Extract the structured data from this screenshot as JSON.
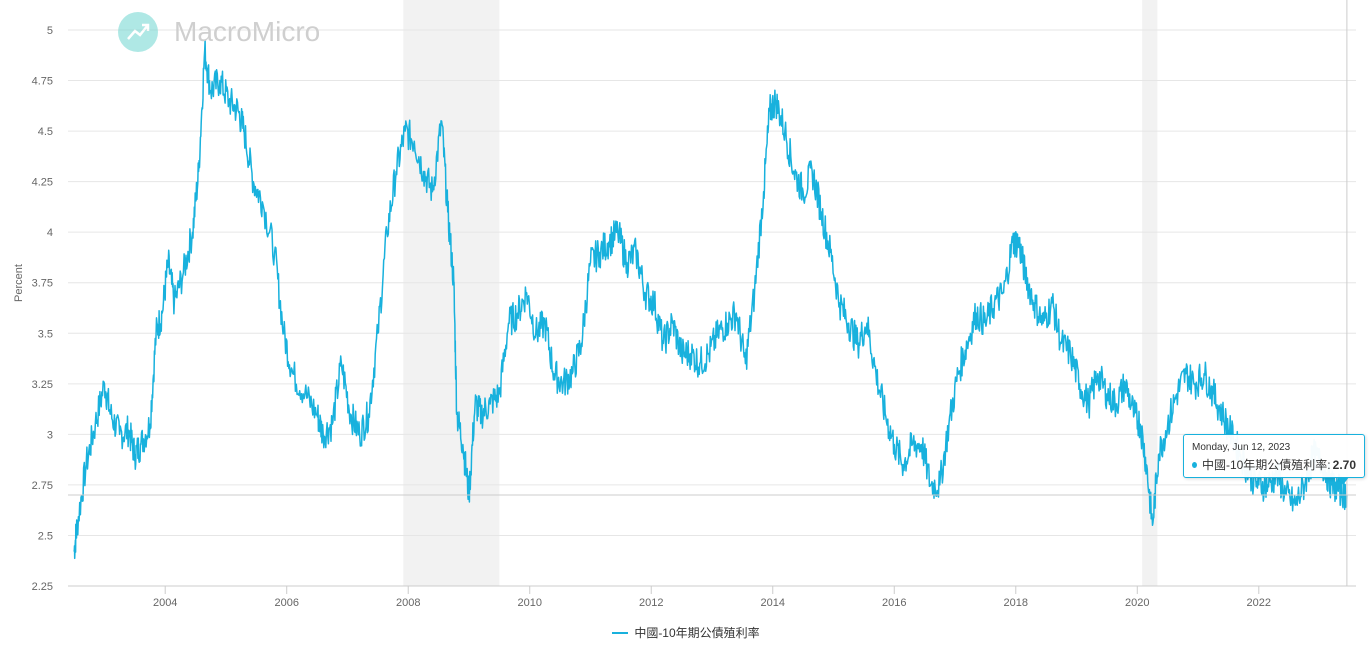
{
  "logo": {
    "text": "MacroMicro",
    "icon": "trend-chart-icon"
  },
  "chart_data": {
    "type": "line",
    "title": "",
    "ylabel": "Percent",
    "xlabel": "",
    "ylim": [
      2.25,
      5
    ],
    "yticks": [
      "2.25",
      "2.5",
      "2.75",
      "3",
      "3.25",
      "3.5",
      "3.75",
      "4",
      "4.25",
      "4.5",
      "4.75",
      "5"
    ],
    "xticks": [
      "2004",
      "2006",
      "2008",
      "2010",
      "2012",
      "2014",
      "2016",
      "2018",
      "2020",
      "2022"
    ],
    "xlim": [
      2002.4,
      2023.6
    ],
    "recession_bands": [
      [
        2007.92,
        2009.5
      ],
      [
        2020.08,
        2020.33
      ]
    ],
    "color": "#18b1dd",
    "series": [
      {
        "name": "中國-10年期公債殖利率",
        "x": [
          2002.5,
          2002.55,
          2002.7,
          2002.85,
          2003.0,
          2003.1,
          2003.25,
          2003.4,
          2003.5,
          2003.6,
          2003.75,
          2003.85,
          2003.95,
          2004.05,
          2004.15,
          2004.3,
          2004.45,
          2004.55,
          2004.65,
          2004.75,
          2004.9,
          2005.05,
          2005.2,
          2005.3,
          2005.45,
          2005.6,
          2005.8,
          2005.95,
          2006.1,
          2006.3,
          2006.5,
          2006.6,
          2006.75,
          2006.9,
          2007.05,
          2007.2,
          2007.35,
          2007.5,
          2007.65,
          2007.8,
          2007.95,
          2008.1,
          2008.25,
          2008.4,
          2008.55,
          2008.65,
          2008.75,
          2008.8,
          2008.9,
          2009.0,
          2009.1,
          2009.2,
          2009.35,
          2009.5,
          2009.65,
          2009.8,
          2009.95,
          2010.1,
          2010.25,
          2010.4,
          2010.55,
          2010.7,
          2010.85,
          2011.0,
          2011.15,
          2011.3,
          2011.45,
          2011.6,
          2011.75,
          2011.9,
          2012.05,
          2012.2,
          2012.35,
          2012.5,
          2012.65,
          2012.8,
          2012.95,
          2013.1,
          2013.25,
          2013.4,
          2013.55,
          2013.7,
          2013.85,
          2013.95,
          2014.05,
          2014.2,
          2014.35,
          2014.5,
          2014.65,
          2014.8,
          2014.95,
          2015.1,
          2015.25,
          2015.4,
          2015.55,
          2015.7,
          2015.85,
          2016.0,
          2016.15,
          2016.3,
          2016.45,
          2016.6,
          2016.75,
          2016.9,
          2017.05,
          2017.2,
          2017.35,
          2017.5,
          2017.65,
          2017.8,
          2017.95,
          2018.05,
          2018.15,
          2018.3,
          2018.45,
          2018.6,
          2018.75,
          2018.9,
          2019.05,
          2019.2,
          2019.35,
          2019.5,
          2019.65,
          2019.8,
          2019.95,
          2020.05,
          2020.15,
          2020.25,
          2020.35,
          2020.5,
          2020.65,
          2020.8,
          2020.95,
          2021.1,
          2021.25,
          2021.4,
          2021.55,
          2021.7,
          2021.85,
          2022.0,
          2022.15,
          2022.3,
          2022.45,
          2022.6,
          2022.75,
          2022.9,
          2023.05,
          2023.2,
          2023.35,
          2023.45
        ],
        "values": [
          2.42,
          2.55,
          2.85,
          3.05,
          3.25,
          3.1,
          3.0,
          3.02,
          2.9,
          2.95,
          3.05,
          3.5,
          3.6,
          3.85,
          3.65,
          3.8,
          4.0,
          4.3,
          4.9,
          4.7,
          4.75,
          4.65,
          4.6,
          4.5,
          4.25,
          4.15,
          3.9,
          3.5,
          3.3,
          3.2,
          3.1,
          3.0,
          3.05,
          3.35,
          3.1,
          3.0,
          3.1,
          3.5,
          4.0,
          4.3,
          4.5,
          4.45,
          4.3,
          4.2,
          4.55,
          4.1,
          3.75,
          3.1,
          2.95,
          2.7,
          3.15,
          3.1,
          3.15,
          3.2,
          3.55,
          3.6,
          3.7,
          3.5,
          3.55,
          3.3,
          3.25,
          3.3,
          3.45,
          3.85,
          3.9,
          3.95,
          4.0,
          3.85,
          3.9,
          3.7,
          3.65,
          3.45,
          3.55,
          3.4,
          3.4,
          3.35,
          3.4,
          3.5,
          3.55,
          3.6,
          3.35,
          3.7,
          4.2,
          4.6,
          4.65,
          4.5,
          4.3,
          4.2,
          4.3,
          4.1,
          3.9,
          3.65,
          3.55,
          3.45,
          3.55,
          3.3,
          3.1,
          2.95,
          2.85,
          2.95,
          2.95,
          2.75,
          2.75,
          3.05,
          3.3,
          3.45,
          3.6,
          3.55,
          3.65,
          3.7,
          3.95,
          3.95,
          3.8,
          3.65,
          3.55,
          3.65,
          3.45,
          3.4,
          3.25,
          3.15,
          3.3,
          3.2,
          3.15,
          3.25,
          3.1,
          3.05,
          2.85,
          2.55,
          2.9,
          3.05,
          3.2,
          3.3,
          3.25,
          3.3,
          3.2,
          3.1,
          3.0,
          2.9,
          2.8,
          2.75,
          2.75,
          2.8,
          2.7,
          2.65,
          2.75,
          2.9,
          2.85,
          2.75,
          2.72,
          2.7
        ]
      }
    ]
  },
  "legend": {
    "label": "中國-10年期公債殖利率"
  },
  "tooltip": {
    "date": "Monday, Jun 12, 2023",
    "series_label": "中國-10年期公債殖利率:",
    "value": "2.70",
    "x": 2023.45,
    "y": 2.7
  }
}
